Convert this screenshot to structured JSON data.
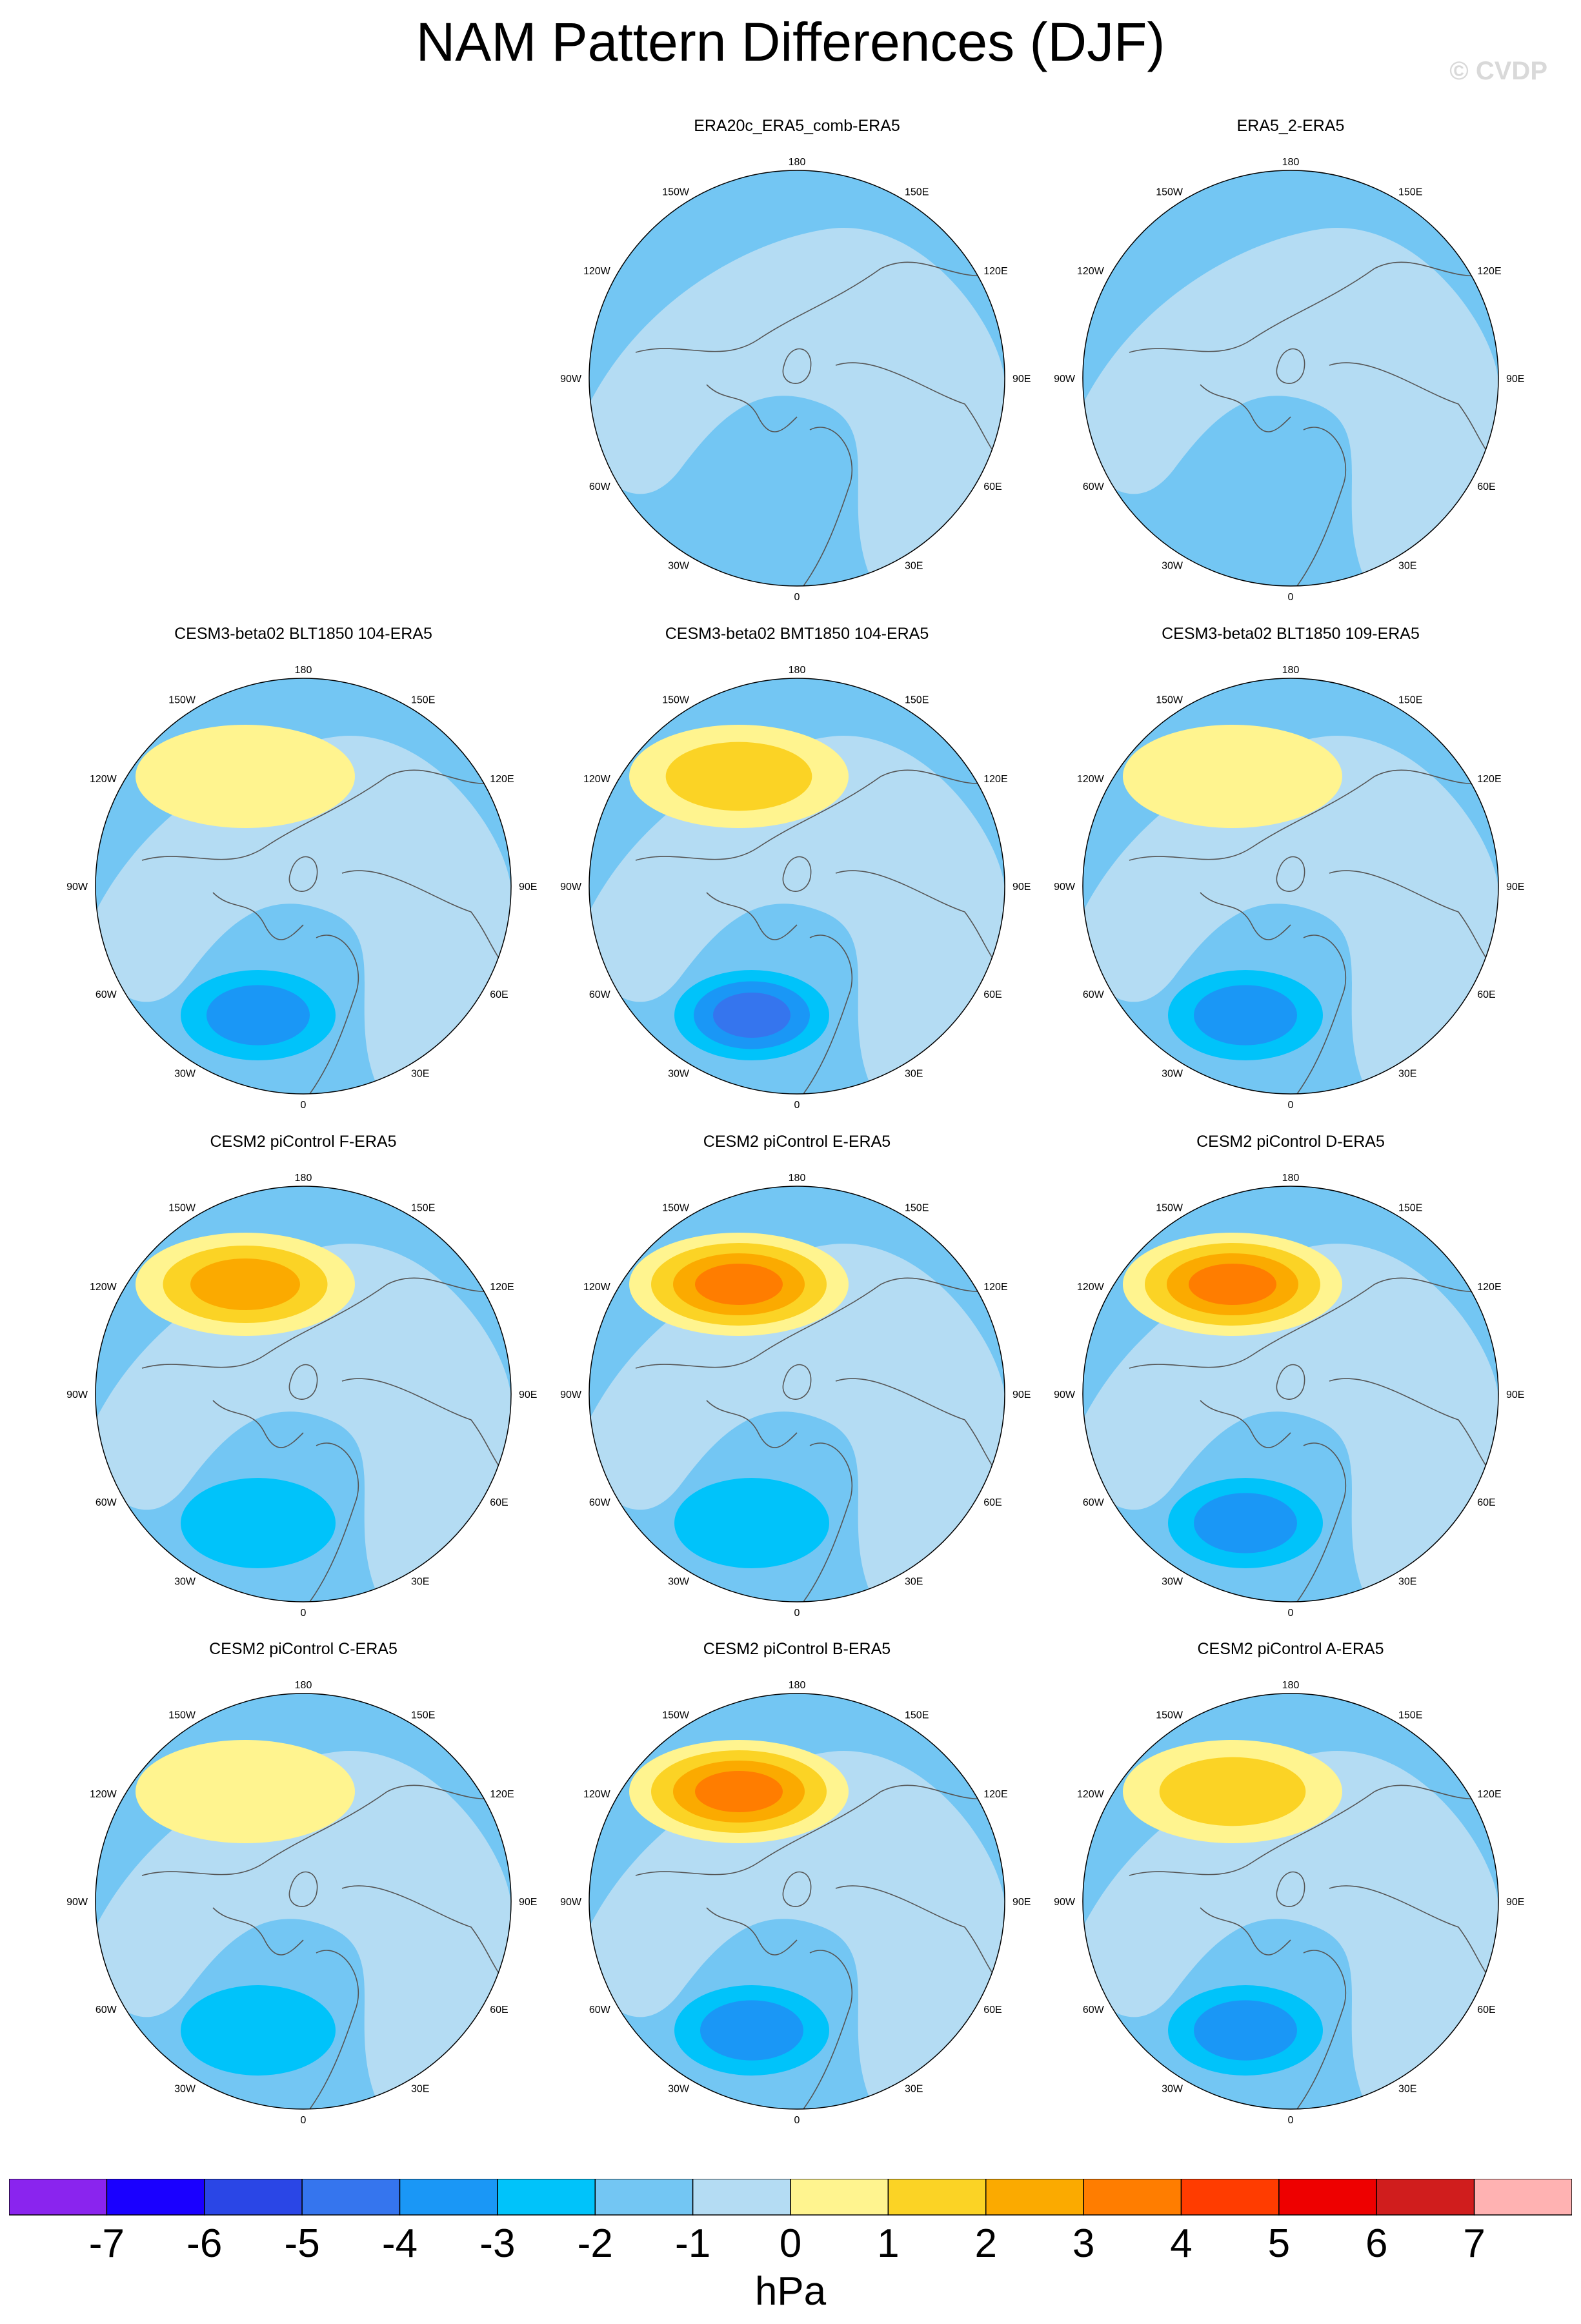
{
  "title": "NAM Pattern Differences (DJF)",
  "copyright": "© CVDP",
  "chart_data": {
    "type": "polar-contour-map",
    "projection": "north-polar-stereographic",
    "variable": "NAM sea level pressure pattern difference",
    "season": "DJF",
    "units": "hPa",
    "colorbar": {
      "labels": [
        "-7",
        "-6",
        "-5",
        "-4",
        "-3",
        "-2",
        "-1",
        "0",
        "1",
        "2",
        "3",
        "4",
        "5",
        "6",
        "7"
      ],
      "levels": [
        -7,
        -6,
        -5,
        -4,
        -3,
        -2,
        -1,
        0,
        1,
        2,
        3,
        4,
        5,
        6,
        7
      ],
      "colors": [
        "#8a24ee",
        "#1a00ff",
        "#2a46e6",
        "#3575ee",
        "#1a97f6",
        "#00c3fa",
        "#73c6f3",
        "#b4dcf3",
        "#fff48f",
        "#fbd325",
        "#fbaa00",
        "#ff7d00",
        "#ff3c00",
        "#ee0000",
        "#d01d1d",
        "#ffb2b2"
      ]
    },
    "map_labels": {
      "top": "180",
      "bottom": "0",
      "left": [
        "150W",
        "120W",
        "90W",
        "60W",
        "30W"
      ],
      "right": [
        "150E",
        "120E",
        "90E",
        "60E",
        "30E"
      ]
    },
    "panels": [
      {
        "title": "ERA20c_ERA5_comb-ERA5",
        "row": 0,
        "col": 1,
        "max_positive": 1,
        "max_negative": -1
      },
      {
        "title": "ERA5_2-ERA5",
        "row": 0,
        "col": 2,
        "max_positive": 1,
        "max_negative": -1
      },
      {
        "title": "CESM3-beta02 BLT1850 104-ERA5",
        "row": 1,
        "col": 0,
        "max_positive": 2,
        "max_negative": -3
      },
      {
        "title": "CESM3-beta02 BMT1850 104-ERA5",
        "row": 1,
        "col": 1,
        "max_positive": 3,
        "max_negative": -4
      },
      {
        "title": "CESM3-beta02 BLT1850 109-ERA5",
        "row": 1,
        "col": 2,
        "max_positive": 2,
        "max_negative": -3
      },
      {
        "title": "CESM2 piControl F-ERA5",
        "row": 2,
        "col": 0,
        "max_positive": 4,
        "max_negative": -2
      },
      {
        "title": "CESM2 piControl E-ERA5",
        "row": 2,
        "col": 1,
        "max_positive": 5,
        "max_negative": -2
      },
      {
        "title": "CESM2 piControl D-ERA5",
        "row": 2,
        "col": 2,
        "max_positive": 5,
        "max_negative": -3
      },
      {
        "title": "CESM2 piControl C-ERA5",
        "row": 3,
        "col": 0,
        "max_positive": 2,
        "max_negative": -2
      },
      {
        "title": "CESM2 piControl B-ERA5",
        "row": 3,
        "col": 1,
        "max_positive": 5,
        "max_negative": -3
      },
      {
        "title": "CESM2 piControl A-ERA5",
        "row": 3,
        "col": 2,
        "max_positive": 3,
        "max_negative": -3
      }
    ]
  }
}
